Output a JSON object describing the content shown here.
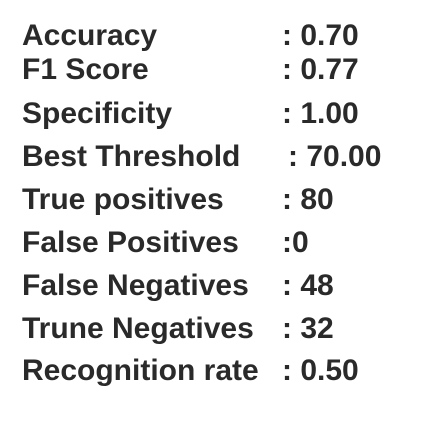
{
  "metrics": [
    {
      "label": "Accuracy",
      "value": ": 0.70"
    },
    {
      "label": "F1 Score",
      "value": ": 0.77"
    },
    {
      "label": "Specificity",
      "value": ": 1.00"
    },
    {
      "label": "Best Threshold",
      "value": ": 70.00"
    },
    {
      "label": "True positives",
      "value": ": 80"
    },
    {
      "label": "False Positives",
      "value": ":0"
    },
    {
      "label": "False Negatives",
      "value": ": 48"
    },
    {
      "label": "Trune Negatives",
      "value": ": 32"
    },
    {
      "label": "Recognition rate",
      "value": ": 0.50"
    }
  ]
}
